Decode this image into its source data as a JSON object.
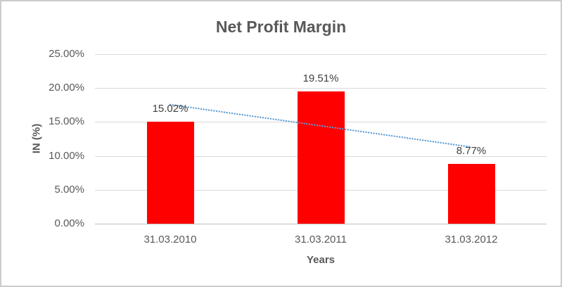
{
  "chart": {
    "background": "#FFFFFF",
    "border_color": "#CCCCCC"
  },
  "chart_data": {
    "type": "bar",
    "title": "Net Profit Margin",
    "categories": [
      "31.03.2010",
      "31.03.2011",
      "31.03.2012"
    ],
    "values": [
      15.02,
      19.51,
      8.77
    ],
    "data_labels": [
      "15.02%",
      "19.51%",
      "8.77%"
    ],
    "xlabel": "Years",
    "ylabel": "IN (%)",
    "ylim": [
      0,
      25
    ],
    "yticks": [
      0,
      5,
      10,
      15,
      20,
      25
    ],
    "ytick_labels": [
      "0.00%",
      "5.00%",
      "10.00%",
      "15.00%",
      "20.00%",
      "25.00%"
    ],
    "grid": true,
    "legend": "none",
    "bar_color": "#FF0000",
    "trendline": {
      "type": "linear",
      "style": "dotted",
      "color": "#5B9BD5",
      "start_value": 17.56,
      "end_value": 11.31
    },
    "text_colors": {
      "title": "#595959",
      "axis_titles": "#595959",
      "tick_labels": "#595959",
      "data_labels": "#404040"
    },
    "line_colors": {
      "gridline": "#D9D9D9",
      "axis_line": "#BFBFBF"
    }
  }
}
